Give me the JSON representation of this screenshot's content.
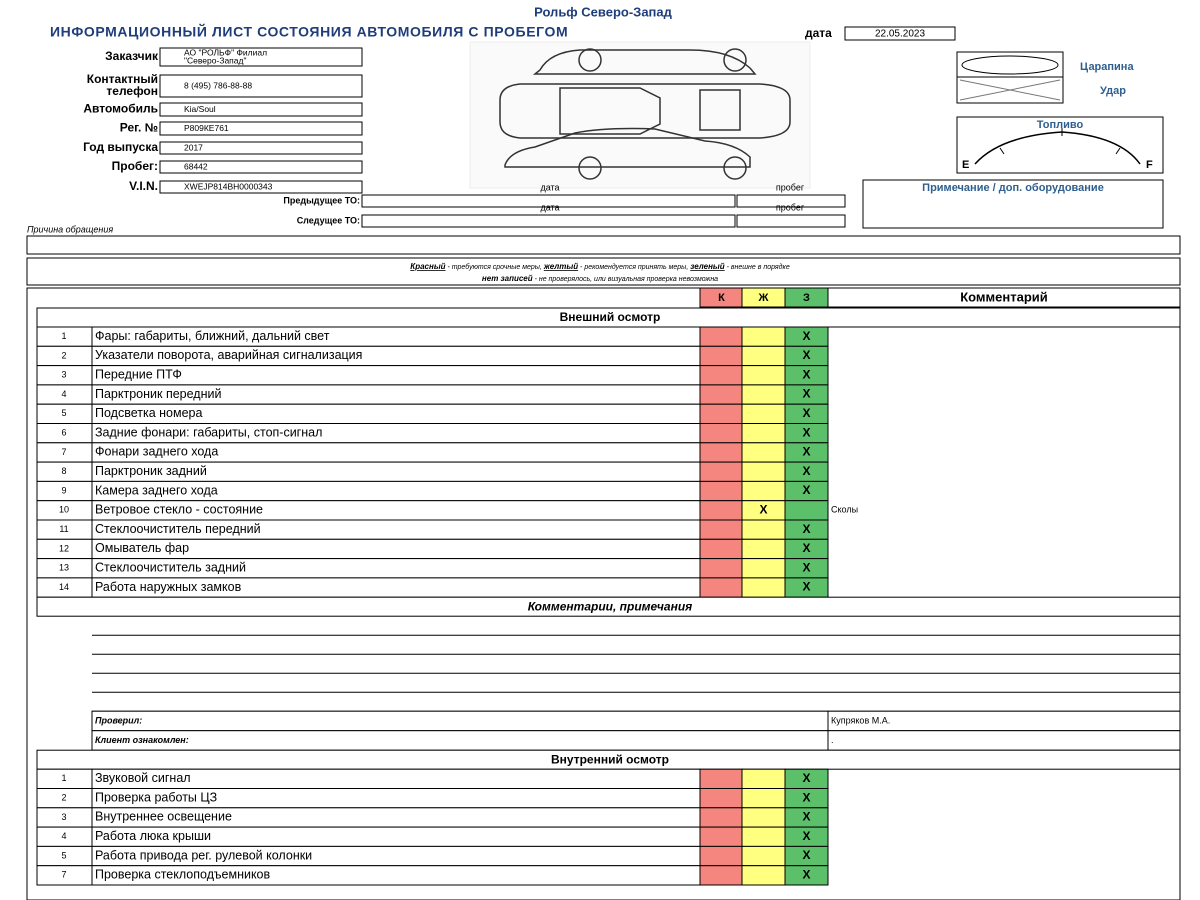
{
  "header": {
    "company": "Рольф Северо-Запад",
    "title": "ИНФОРМАЦИОННЫЙ ЛИСТ СОСТОЯНИЯ АВТОМОБИЛЯ С ПРОБЕГОМ",
    "date_label": "дата",
    "date": "22.05.2023"
  },
  "fields": [
    {
      "label": [
        "Заказчик"
      ],
      "value": [
        "АО \"РОЛЬФ\" Филиал",
        "\"Северо-Запад\""
      ]
    },
    {
      "label": [
        "Контактный",
        "телефон"
      ],
      "value": [
        "8 (495) 786-88-88"
      ]
    },
    {
      "label": [
        "Автомобиль"
      ],
      "value": [
        "Kia/Soul"
      ]
    },
    {
      "label": [
        "Рег. №"
      ],
      "value": [
        "Р809КЕ761"
      ]
    },
    {
      "label": [
        "Год выпуска"
      ],
      "value": [
        "2017"
      ]
    },
    {
      "label": [
        "Пробег:"
      ],
      "value": [
        "68442"
      ]
    },
    {
      "label": [
        "V.I.N."
      ],
      "value": [
        "XWEJP814BH0000343"
      ]
    }
  ],
  "damage_legend": {
    "scratch": "Царапина",
    "hit": "Удар"
  },
  "fuel": {
    "label": "Топливо",
    "empty": "E",
    "full": "F"
  },
  "notes_label": "Примечание / доп. оборудование",
  "service": [
    {
      "label": "Предыдущее ТО:",
      "date_label": "дата",
      "mileage_label": "пробег"
    },
    {
      "label": "Следущее ТО:",
      "date_label": "дата",
      "mileage_label": "пробег"
    }
  ],
  "reason_label": "Причина обращения",
  "legend": {
    "line1": [
      {
        "text": "Красный",
        "key": true
      },
      {
        "text": " - требуются срочные меры, "
      },
      {
        "text": "желтый",
        "key": true
      },
      {
        "text": " - рекомендуется принять меры, "
      },
      {
        "text": "зеленый",
        "key": true
      },
      {
        "text": " - внешне в порядке"
      }
    ],
    "line2": [
      {
        "text": "нет записей"
      },
      {
        "text": " - не проверялось, или визуальная проверка невозможна"
      }
    ]
  },
  "table": {
    "columns": [
      "К",
      "Ж",
      "З",
      "Комментарий"
    ],
    "exterior": {
      "title": "Внешний осмотр",
      "rows": [
        {
          "num": 1,
          "item": "Фары: габариты, ближний, дальний свет",
          "z": "Х"
        },
        {
          "num": 2,
          "item": "Указатели поворота, аварийная сигнализация",
          "z": "Х"
        },
        {
          "num": 3,
          "item": "Передние ПТФ",
          "z": "Х"
        },
        {
          "num": 4,
          "item": "Парктроник передний",
          "z": "Х"
        },
        {
          "num": 5,
          "item": "Подсветка номера",
          "z": "Х"
        },
        {
          "num": 6,
          "item": "Задние фонари: габариты, стоп-сигнал",
          "z": "Х"
        },
        {
          "num": 7,
          "item": "Фонари заднего хода",
          "z": "Х"
        },
        {
          "num": 8,
          "item": "Парктроник задний",
          "z": "Х"
        },
        {
          "num": 9,
          "item": "Камера заднего хода",
          "z": "Х"
        },
        {
          "num": 10,
          "item": "Ветровое стекло - состояние",
          "zh": "Х",
          "comment": "Сколы"
        },
        {
          "num": 11,
          "item": "Стеклоочиститель передний",
          "z": "Х"
        },
        {
          "num": 12,
          "item": "Омыватель фар",
          "z": "Х"
        },
        {
          "num": 13,
          "item": "Стеклоочиститель задний",
          "z": "Х"
        },
        {
          "num": 14,
          "item": "Работа наружных замков",
          "z": "Х"
        }
      ]
    },
    "comments_title": "Комментарии, примечания",
    "checked_by": {
      "label": "Проверил:",
      "value": "Купряков М.А."
    },
    "client": {
      "label": "Клиент ознакомлен:",
      "value": "."
    },
    "interior": {
      "title": "Внутренний осмотр",
      "rows": [
        {
          "num": 1,
          "item": "Звуковой сигнал",
          "z": "Х"
        },
        {
          "num": 2,
          "item": "Проверка работы ЦЗ",
          "z": "Х"
        },
        {
          "num": 3,
          "item": "Внутреннее освещение",
          "z": "Х"
        },
        {
          "num": 4,
          "item": "Работа люка крыши",
          "z": "Х"
        },
        {
          "num": 5,
          "item": "Работа привода рег. рулевой колонки",
          "z": "Х"
        },
        {
          "num": 7,
          "item": "Проверка стеклоподъемников",
          "z": "Х"
        }
      ]
    }
  }
}
